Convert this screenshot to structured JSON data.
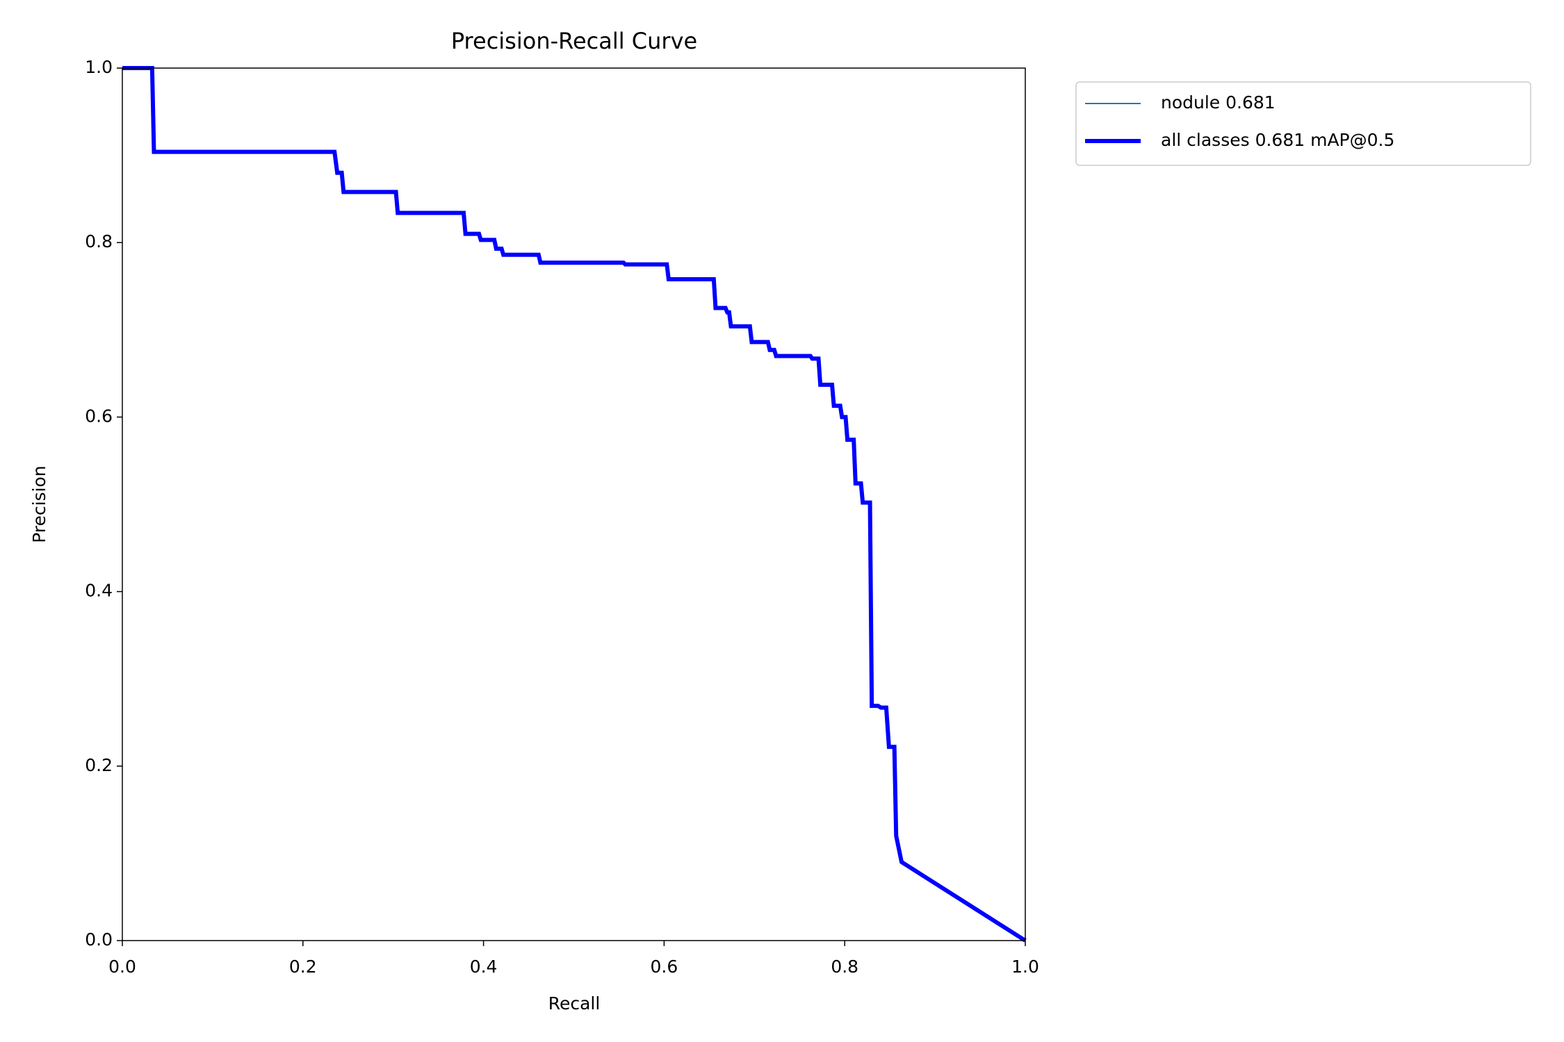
{
  "chart_data": {
    "type": "line",
    "title": "Precision-Recall Curve",
    "x_label": "Recall",
    "y_label": "Precision",
    "x": [
      0,
      0.033,
      0.035,
      0.235,
      0.238,
      0.243,
      0.245,
      0.303,
      0.305,
      0.378,
      0.38,
      0.395,
      0.397,
      0.412,
      0.414,
      0.42,
      0.422,
      0.461,
      0.463,
      0.555,
      0.557,
      0.603,
      0.605,
      0.655,
      0.657,
      0.668,
      0.67,
      0.672,
      0.674,
      0.695,
      0.697,
      0.715,
      0.717,
      0.722,
      0.724,
      0.762,
      0.764,
      0.771,
      0.773,
      0.786,
      0.788,
      0.795,
      0.797,
      0.801,
      0.803,
      0.81,
      0.812,
      0.818,
      0.82,
      0.828,
      0.83,
      0.837,
      0.84,
      0.846,
      0.849,
      0.855,
      0.857,
      0.863,
      1.0
    ],
    "series": [
      {
        "name": "nodule 0.681",
        "color": "#1f77b4",
        "values": [
          1.0,
          1.0,
          0.904,
          0.904,
          0.88,
          0.88,
          0.858,
          0.858,
          0.834,
          0.834,
          0.81,
          0.81,
          0.803,
          0.803,
          0.793,
          0.793,
          0.786,
          0.786,
          0.777,
          0.777,
          0.775,
          0.775,
          0.758,
          0.758,
          0.725,
          0.725,
          0.72,
          0.72,
          0.704,
          0.704,
          0.686,
          0.686,
          0.677,
          0.677,
          0.67,
          0.67,
          0.667,
          0.667,
          0.637,
          0.637,
          0.613,
          0.613,
          0.6,
          0.6,
          0.574,
          0.574,
          0.524,
          0.524,
          0.502,
          0.502,
          0.269,
          0.269,
          0.267,
          0.267,
          0.222,
          0.222,
          0.12,
          0.09,
          0.0
        ]
      },
      {
        "name": "all classes 0.681 mAP@0.5",
        "color": "#0000ff",
        "values": [
          1.0,
          1.0,
          0.904,
          0.904,
          0.88,
          0.88,
          0.858,
          0.858,
          0.834,
          0.834,
          0.81,
          0.81,
          0.803,
          0.803,
          0.793,
          0.793,
          0.786,
          0.786,
          0.777,
          0.777,
          0.775,
          0.775,
          0.758,
          0.758,
          0.725,
          0.725,
          0.72,
          0.72,
          0.704,
          0.704,
          0.686,
          0.686,
          0.677,
          0.677,
          0.67,
          0.67,
          0.667,
          0.667,
          0.637,
          0.637,
          0.613,
          0.613,
          0.6,
          0.6,
          0.574,
          0.574,
          0.524,
          0.524,
          0.502,
          0.502,
          0.269,
          0.269,
          0.267,
          0.267,
          0.222,
          0.222,
          0.12,
          0.09,
          0.0
        ]
      }
    ],
    "xlim": [
      0,
      1
    ],
    "ylim": [
      0,
      1
    ],
    "xticks": [
      {
        "value": 0,
        "label": "0.0"
      },
      0.2,
      0.4,
      0.6,
      0.8,
      {
        "value": 1,
        "label": "1.0"
      }
    ],
    "yticks": [
      {
        "value": 0,
        "label": "0.0"
      },
      0.2,
      0.4,
      0.6,
      0.8,
      {
        "value": 1,
        "label": "1.0"
      }
    ],
    "grid": false,
    "legend": "outside-upper-right"
  }
}
